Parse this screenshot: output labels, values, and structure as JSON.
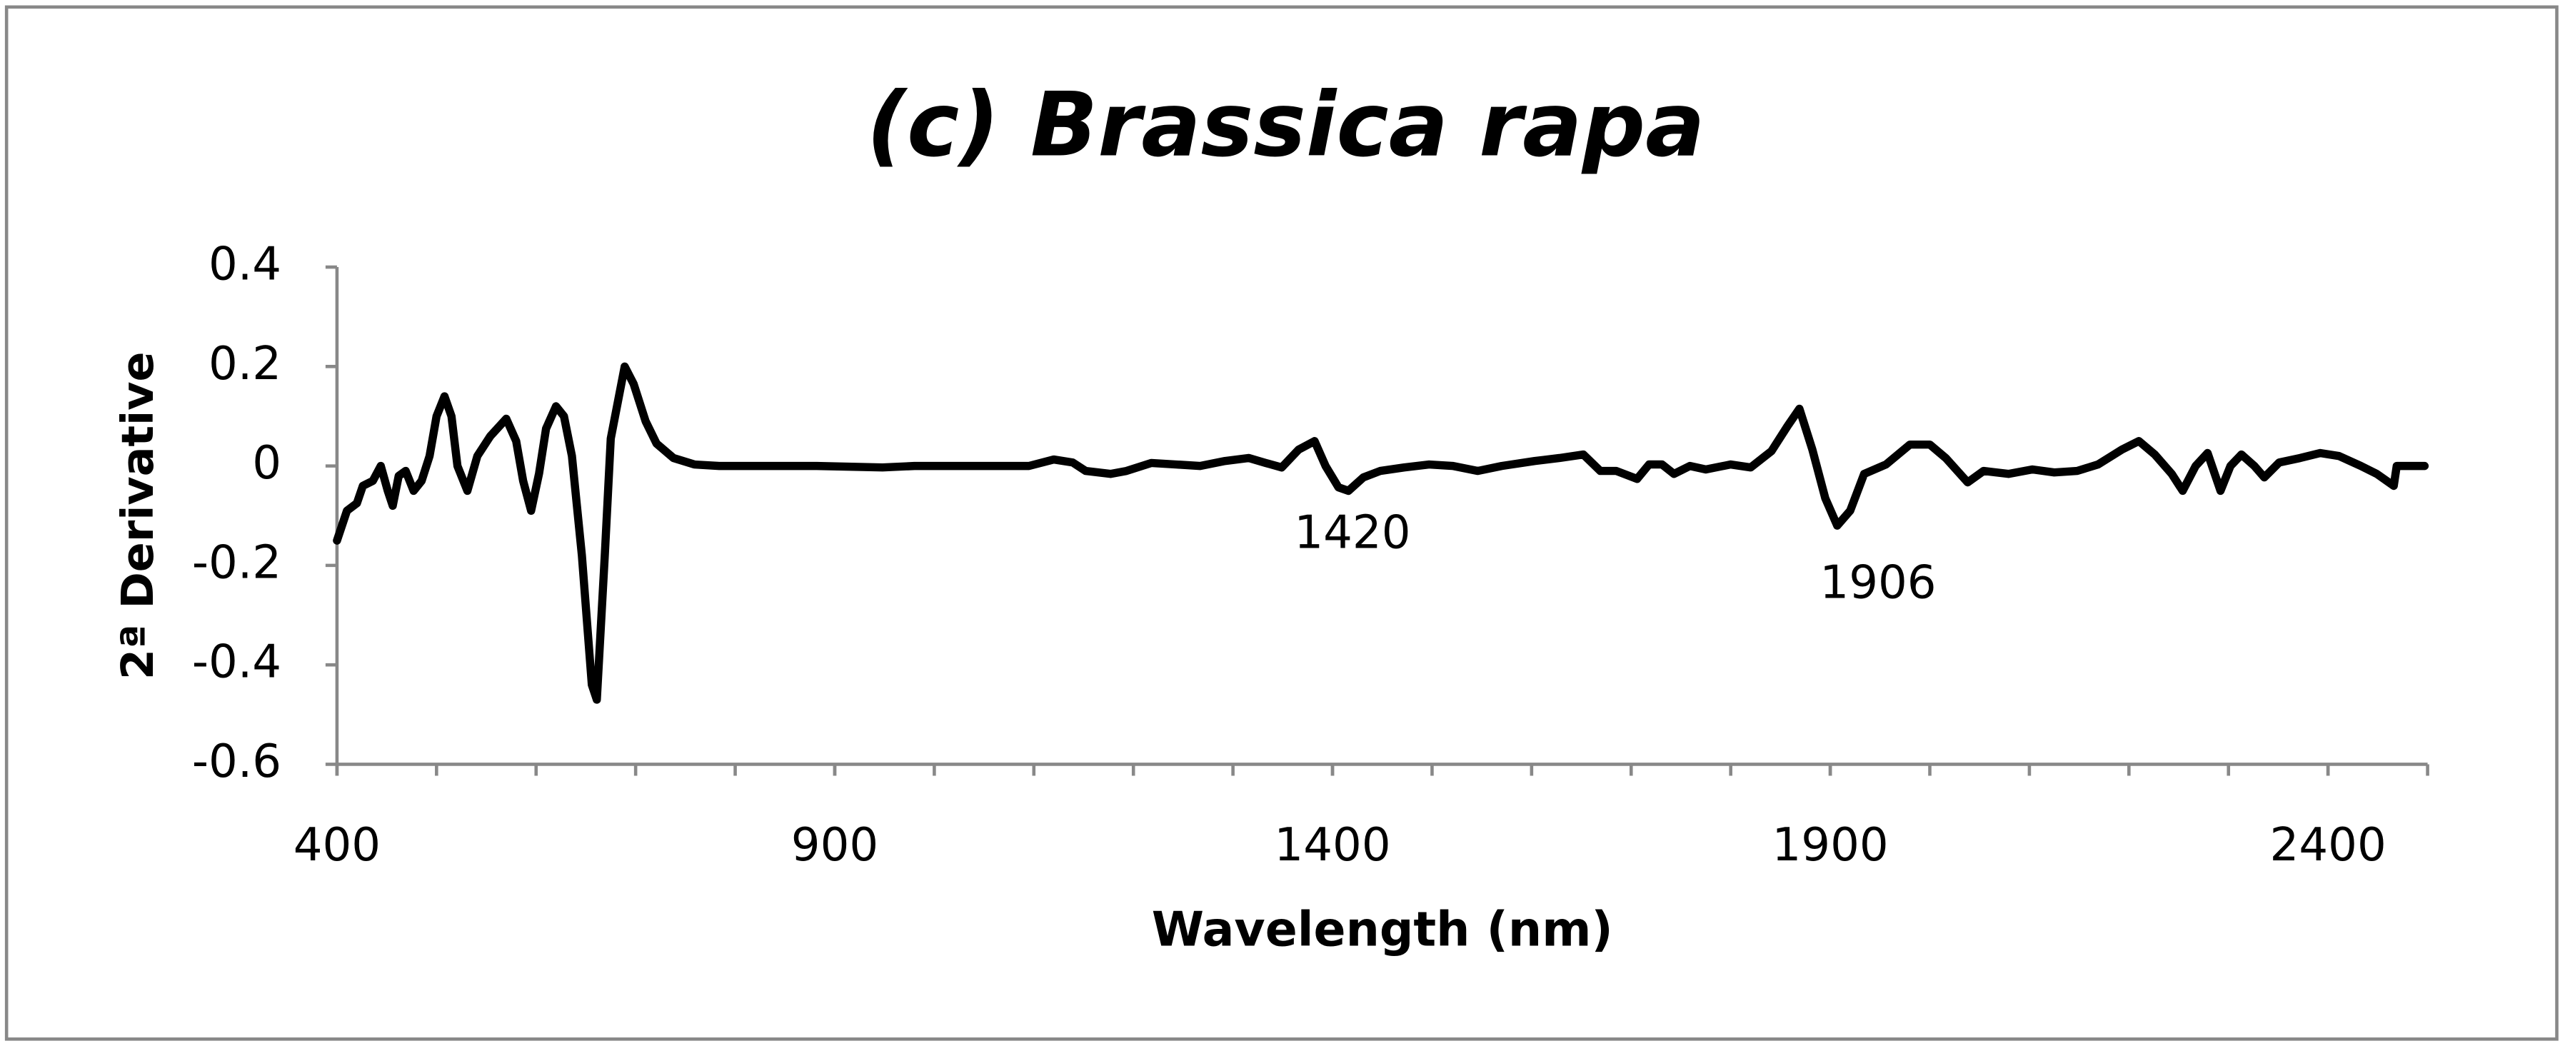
{
  "chart_data": {
    "type": "line",
    "title": "(c) Brassica rapa",
    "x_label": "Wavelength (nm)",
    "y_label": "2ª Derivative",
    "xlim": [
      400,
      2500
    ],
    "ylim": [
      -0.6,
      0.4
    ],
    "xticks": [
      400,
      900,
      1400,
      1900,
      2400
    ],
    "xminorticks": [
      400,
      500,
      600,
      700,
      800,
      900,
      1000,
      1100,
      1200,
      1300,
      1400,
      1500,
      1600,
      1700,
      1800,
      1900,
      2000,
      2100,
      2200,
      2300,
      2400,
      2500
    ],
    "yticks": [
      -0.6,
      -0.4,
      -0.2,
      0,
      0.2,
      0.4
    ],
    "grid": false,
    "annotations": [
      {
        "text": "1420",
        "x": 1420,
        "y": -0.14
      },
      {
        "text": "1906",
        "x": 1948,
        "y": -0.24
      }
    ],
    "series": [
      {
        "color": "#000000",
        "x": [
          400,
          410,
          420,
          426,
          436,
          444,
          451,
          456,
          462,
          469,
          477,
          485,
          493,
          500,
          508,
          515,
          521,
          531,
          541,
          554,
          570,
          580,
          587,
          595,
          603,
          610,
          620,
          628,
          636,
          646,
          656,
          661,
          669,
          675,
          689,
          698,
          710,
          721,
          738,
          759,
          784,
          882,
          948,
          980,
          1095,
          1120,
          1139,
          1152,
          1177,
          1193,
          1218,
          1243,
          1267,
          1292,
          1316,
          1333,
          1349,
          1366,
          1382,
          1393,
          1406,
          1416,
          1431,
          1448,
          1472,
          1497,
          1521,
          1546,
          1570,
          1603,
          1628,
          1652,
          1669,
          1685,
          1706,
          1718,
          1731,
          1743,
          1759,
          1775,
          1800,
          1820,
          1841,
          1857,
          1869,
          1882,
          1895,
          1907,
          1920,
          1934,
          1956,
          1980,
          2000,
          2016,
          2038,
          2054,
          2079,
          2103,
          2125,
          2148,
          2169,
          2193,
          2210,
          2226,
          2243,
          2254,
          2267,
          2279,
          2292,
          2302,
          2313,
          2326,
          2336,
          2351,
          2372,
          2392,
          2411,
          2433,
          2449,
          2466,
          2469,
          2497
        ],
        "values": [
          -0.15,
          -0.09,
          -0.075,
          -0.04,
          -0.03,
          0,
          -0.05,
          -0.08,
          -0.02,
          -0.01,
          -0.05,
          -0.03,
          0.02,
          0.1,
          0.14,
          0.1,
          0,
          -0.05,
          0.02,
          0.06,
          0.095,
          0.05,
          -0.03,
          -0.09,
          -0.015,
          0.075,
          0.12,
          0.1,
          0.02,
          -0.18,
          -0.44,
          -0.47,
          -0.18,
          0.055,
          0.2,
          0.165,
          0.09,
          0.045,
          0.016,
          0.003,
          0,
          0,
          -0.003,
          0,
          0,
          0.013,
          0.007,
          -0.01,
          -0.016,
          -0.01,
          0.006,
          0.003,
          0,
          0.01,
          0.016,
          0.006,
          -0.003,
          0.033,
          0.05,
          0,
          -0.043,
          -0.05,
          -0.023,
          -0.01,
          -0.003,
          0.003,
          0,
          -0.01,
          0,
          0.01,
          0.016,
          0.023,
          -0.01,
          -0.01,
          -0.026,
          0.003,
          0.003,
          -0.016,
          0,
          -0.007,
          0.003,
          -0.003,
          0.03,
          0.08,
          0.115,
          0.033,
          -0.065,
          -0.12,
          -0.09,
          -0.016,
          0.003,
          0.043,
          0.043,
          0.016,
          -0.033,
          -0.01,
          -0.016,
          -0.007,
          -0.013,
          -0.01,
          0.003,
          0.033,
          0.05,
          0.023,
          -0.016,
          -0.05,
          0,
          0.026,
          -0.05,
          0,
          0.023,
          0,
          -0.023,
          0.007,
          0.016,
          0.026,
          0.02,
          0,
          -0.016,
          -0.04,
          0,
          0
        ]
      }
    ]
  }
}
